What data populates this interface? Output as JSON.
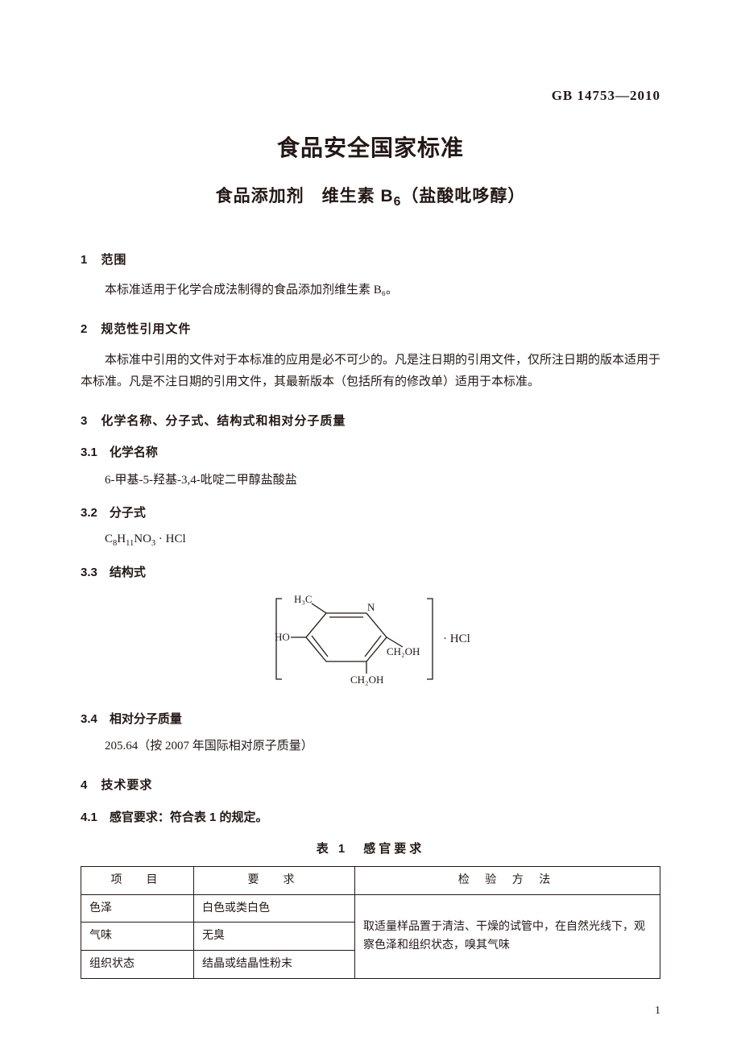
{
  "document_code": "GB 14753—2010",
  "main_title": "食品安全国家标准",
  "sub_title_prefix": "食品添加剂　维生素 B",
  "sub_title_sub": "6",
  "sub_title_suffix": "（盐酸吡哆醇）",
  "sections": {
    "s1": {
      "heading": "1　范围",
      "body": "本标准适用于化学合成法制得的食品添加剂维生素 B₆。"
    },
    "s2": {
      "heading": "2　规范性引用文件",
      "body": "本标准中引用的文件对于本标准的应用是必不可少的。凡是注日期的引用文件，仅所注日期的版本适用于本标准。凡是不注日期的引用文件，其最新版本（包括所有的修改单）适用于本标准。"
    },
    "s3": {
      "heading": "3　化学名称、分子式、结构式和相对分子质量"
    },
    "s3_1": {
      "heading": "3.1　化学名称",
      "body": "6-甲基-5-羟基-3,4-吡啶二甲醇盐酸盐"
    },
    "s3_2": {
      "heading": "3.2　分子式",
      "formula_html": "C<sub>8</sub>H<sub>11</sub>NO<sub>3</sub> · HCl"
    },
    "s3_3": {
      "heading": "3.3　结构式"
    },
    "s3_4": {
      "heading": "3.4　相对分子质量",
      "body": "205.64（按 2007 年国际相对原子质量）"
    },
    "s4": {
      "heading": "4　技术要求"
    },
    "s4_1": {
      "heading": "4.1　感官要求：符合表 1 的规定。"
    }
  },
  "structure": {
    "labels": {
      "h3c": "H₃C",
      "n": "N",
      "ho": "HO",
      "ch2oh_r": "CH₂OH",
      "ch2oh_b": "CH₂OH",
      "hcl": "· HCl"
    },
    "stroke": "#231815",
    "font": "Times New Roman, serif",
    "font_size": 13
  },
  "table1": {
    "title": "表 1　感官要求",
    "headers": {
      "item": "项　目",
      "req": "要　求",
      "method": "检 验 方 法"
    },
    "rows": [
      {
        "item": "色泽",
        "req": "白色或类白色"
      },
      {
        "item": "气味",
        "req": "无臭"
      },
      {
        "item": "组织状态",
        "req": "结晶或结晶性粉末"
      }
    ],
    "method_merged": "取适量样品置于清洁、干燥的试管中，在自然光线下，观察色泽和组织状态，嗅其气味"
  },
  "page_number": "1",
  "colors": {
    "text": "#231815",
    "bg": "#ffffff",
    "border": "#231815"
  }
}
